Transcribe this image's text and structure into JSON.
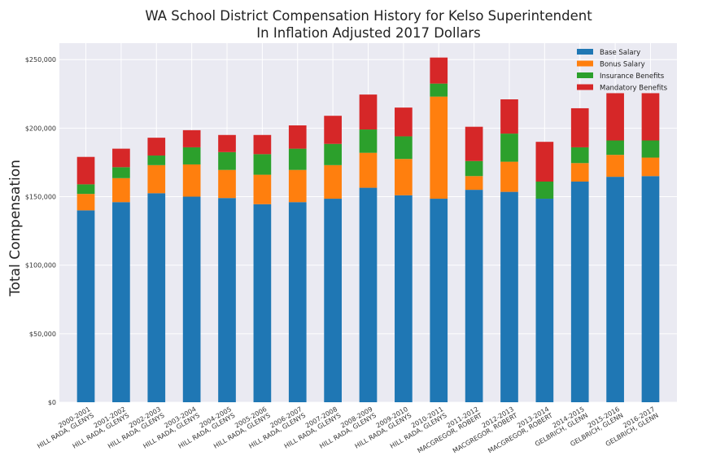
{
  "chart_data": {
    "type": "bar",
    "stacked": true,
    "title": "WA School District Compensation History for Kelso Superintendent",
    "subtitle": "In Inflation Adjusted 2017 Dollars",
    "xlabel": "",
    "ylabel": "Total Compensation",
    "ylim": [
      0,
      262000
    ],
    "yticks": [
      0,
      50000,
      100000,
      150000,
      200000,
      250000
    ],
    "ytick_labels": [
      "$0",
      "$50,000",
      "$100,000",
      "$150,000",
      "$200,000",
      "$250,000"
    ],
    "grid": true,
    "legend_position": "top-right",
    "categories": [
      [
        "2000-2001",
        "HILL RADA, GLENYS"
      ],
      [
        "2001-2002",
        "HILL RADA, GLENYS"
      ],
      [
        "2002-2003",
        "HILL RADA, GLENYS"
      ],
      [
        "2003-2004",
        "HILL RADA, GLENYS"
      ],
      [
        "2004-2005",
        "HILL RADA, GLENYS"
      ],
      [
        "2005-2006",
        "HILL RADA, GLENYS"
      ],
      [
        "2006-2007",
        "HILL RADA, GLENYS"
      ],
      [
        "2007-2008",
        "HILL RADA, GLENYS"
      ],
      [
        "2008-2009",
        "HILL RADA, GLENYS"
      ],
      [
        "2009-2010",
        "HILL RADA, GLENYS"
      ],
      [
        "2010-2011",
        "HILL RADA, GLENYS"
      ],
      [
        "2011-2012",
        "MACGREGOR, ROBERT"
      ],
      [
        "2012-2013",
        "MACGREGOR, ROBERT"
      ],
      [
        "2013-2014",
        "MACGREGOR, ROBERT"
      ],
      [
        "2014-2015",
        "GELBRICH, GLENN"
      ],
      [
        "2015-2016",
        "GELBRICH, GLENN"
      ],
      [
        "2016-2017",
        "GELBRICH, GLENN"
      ]
    ],
    "series": [
      {
        "name": "Base Salary",
        "color": "#1f77b4",
        "values": [
          140000,
          146000,
          152500,
          150000,
          149000,
          144500,
          146000,
          148500,
          156500,
          151000,
          148500,
          155000,
          153500,
          148500,
          161000,
          164500,
          165000
        ]
      },
      {
        "name": "Bonus Salary",
        "color": "#ff7f0e",
        "values": [
          12000,
          17500,
          20500,
          23500,
          20500,
          21500,
          23500,
          24500,
          25500,
          26500,
          74500,
          10000,
          22000,
          0,
          13500,
          16000,
          13500
        ]
      },
      {
        "name": "Insurance Benefits",
        "color": "#2ca02c",
        "values": [
          7000,
          8000,
          7000,
          12500,
          13000,
          15000,
          15500,
          15500,
          17000,
          16500,
          9500,
          11000,
          20500,
          12500,
          11500,
          10500,
          12500
        ]
      },
      {
        "name": "Mandatory Benefits",
        "color": "#d62728",
        "values": [
          20000,
          13500,
          13000,
          12500,
          12500,
          14000,
          17000,
          20500,
          25500,
          21000,
          19000,
          25000,
          25000,
          29000,
          28500,
          34500,
          34500
        ]
      }
    ]
  }
}
